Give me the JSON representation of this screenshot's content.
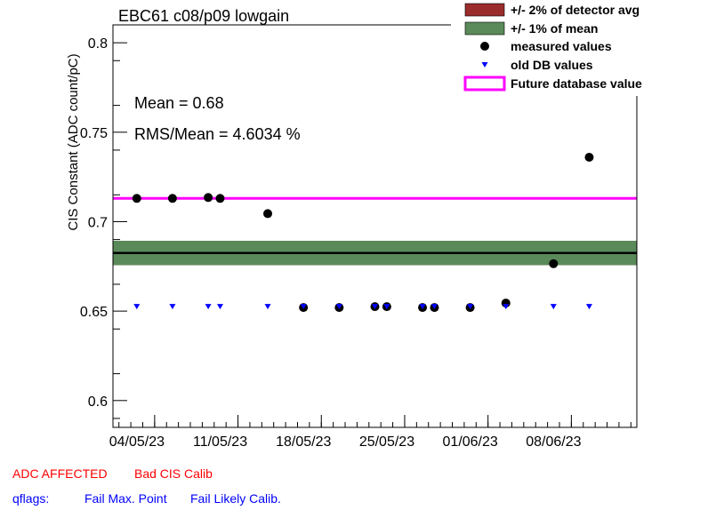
{
  "chart_data": {
    "type": "scatter",
    "title": "EBC61 c08/p09 lowgain",
    "ylabel": "CIS Constant (ADC count/pC)",
    "xlabel": "",
    "ylim": [
      0.585,
      0.81
    ],
    "xlim": [
      "2023-04-30T12:00",
      "2023-06-13T12:00"
    ],
    "yticks": [
      0.6,
      0.65,
      0.7,
      0.75,
      0.8
    ],
    "ytick_labels": [
      "0.6",
      "0.65",
      "0.7",
      "0.75",
      "0.8"
    ],
    "xticks": [
      "2023-05-04",
      "2023-05-11",
      "2023-05-18",
      "2023-05-25",
      "2023-06-01",
      "2023-06-08"
    ],
    "xtick_labels": [
      "04/05/23",
      "11/05/23",
      "18/05/23",
      "25/05/23",
      "01/06/23",
      "08/06/23"
    ],
    "mean_line": 0.6825,
    "band_2pct_detector": [
      0.6757,
      0.6893
    ],
    "band_1pct_mean": [
      0.6757,
      0.6893
    ],
    "future_db_value": 0.713,
    "series": [
      {
        "name": "measured values",
        "color": "#000000",
        "points": [
          [
            "2023-05-02T12:00",
            0.713
          ],
          [
            "2023-05-05T12:00",
            0.713
          ],
          [
            "2023-05-08T12:00",
            0.7135
          ],
          [
            "2023-05-09T12:00",
            0.713
          ],
          [
            "2023-05-13T12:00",
            0.7045
          ],
          [
            "2023-05-16T12:00",
            0.652
          ],
          [
            "2023-05-19T12:00",
            0.652
          ],
          [
            "2023-05-22T12:00",
            0.6525
          ],
          [
            "2023-05-23T12:00",
            0.6525
          ],
          [
            "2023-05-26T12:00",
            0.652
          ],
          [
            "2023-05-27T12:00",
            0.652
          ],
          [
            "2023-05-30T12:00",
            0.652
          ],
          [
            "2023-06-02T12:00",
            0.6545
          ],
          [
            "2023-06-06T12:00",
            0.6765
          ],
          [
            "2023-06-09T12:00",
            0.736
          ]
        ]
      },
      {
        "name": "old DB values",
        "color": "#0000ff",
        "points": [
          [
            "2023-05-02T12:00",
            0.6525
          ],
          [
            "2023-05-05T12:00",
            0.6525
          ],
          [
            "2023-05-08T12:00",
            0.6525
          ],
          [
            "2023-05-09T12:00",
            0.6525
          ],
          [
            "2023-05-13T12:00",
            0.6525
          ],
          [
            "2023-05-16T12:00",
            0.6525
          ],
          [
            "2023-05-19T12:00",
            0.6525
          ],
          [
            "2023-05-22T12:00",
            0.6525
          ],
          [
            "2023-05-23T12:00",
            0.6525
          ],
          [
            "2023-05-26T12:00",
            0.6525
          ],
          [
            "2023-05-27T12:00",
            0.6525
          ],
          [
            "2023-05-30T12:00",
            0.6525
          ],
          [
            "2023-06-02T12:00",
            0.6525
          ],
          [
            "2023-06-06T12:00",
            0.6525
          ],
          [
            "2023-06-09T12:00",
            0.6525
          ]
        ]
      }
    ],
    "legend": {
      "position": "top-right",
      "entries": [
        {
          "label": "+/- 2% of detector avg",
          "kind": "box",
          "color": "#9b2c2c"
        },
        {
          "label": "+/- 1% of mean",
          "kind": "box",
          "color": "#5a8a5a"
        },
        {
          "label": "measured values",
          "kind": "dot",
          "color": "#000000"
        },
        {
          "label": "old DB values",
          "kind": "triangle",
          "color": "#0000ff"
        },
        {
          "label": "Future database value",
          "kind": "line",
          "color": "#ff00ff"
        }
      ]
    },
    "annotations": {
      "mean_text": "Mean = 0.68",
      "rms_text": "RMS/Mean = 4.6034 %"
    },
    "colors": {
      "band_1pct": "#5a8a5a",
      "mean_line": "#000000",
      "future": "#ff00ff"
    },
    "grid": false
  },
  "status": {
    "adc_affected": "ADC AFFECTED",
    "bad_cis_calib": "Bad CIS Calib",
    "qflags_label": "qflags:",
    "fail_max_point": "Fail Max. Point",
    "fail_likely_calib": "Fail Likely Calib.",
    "red": "#ff0000",
    "blue": "#0000ff"
  }
}
